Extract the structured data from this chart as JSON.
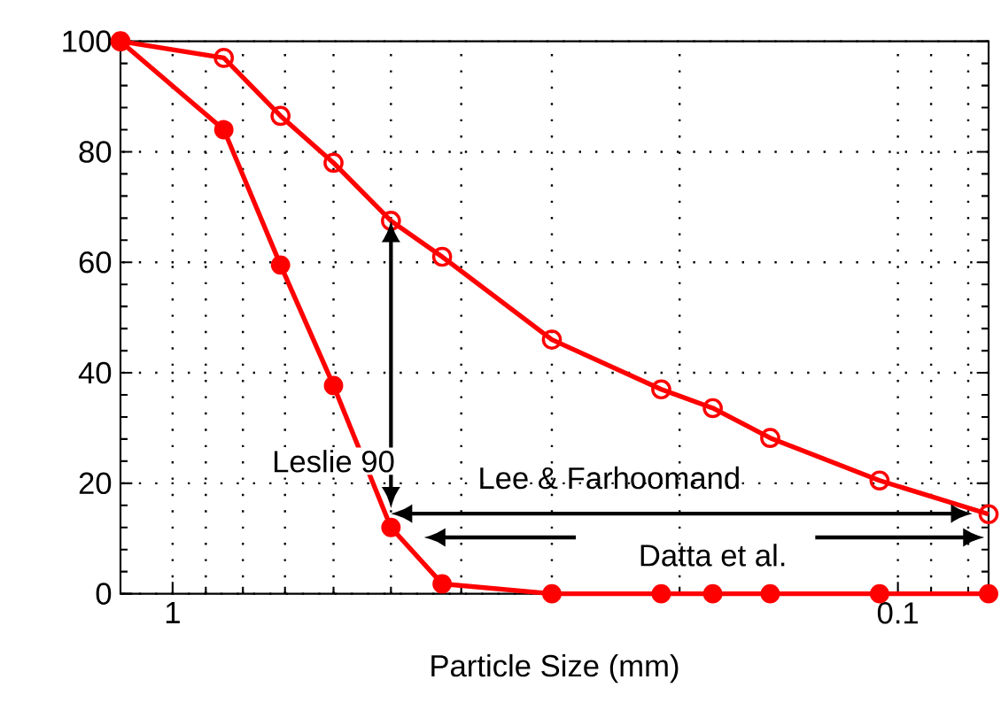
{
  "chart_data": {
    "type": "line",
    "xlabel": "Particle Size (mm)",
    "x": [
      1.18,
      0.85,
      0.71,
      0.6,
      0.5,
      0.425,
      0.3,
      0.212,
      0.18,
      0.15,
      0.106,
      0.075
    ],
    "series": [
      {
        "color": "#ff0000",
        "marker": "circle",
        "values": [
          100,
          84,
          59.5,
          37.7,
          12,
          1.8,
          0,
          0,
          0,
          0,
          0,
          0
        ]
      },
      {
        "color": "#ff0000",
        "marker": "open circle",
        "values": [
          100,
          97,
          86.5,
          78,
          67.5,
          61,
          46,
          37,
          33.6,
          28.2,
          20.5,
          14.4
        ]
      }
    ],
    "log": "x",
    "xlim": [
      1.18,
      0.075
    ],
    "xticks": [
      1,
      0.1
    ],
    "ylim": [
      0,
      100
    ],
    "yticks": [
      0,
      20,
      40,
      60,
      80,
      100
    ],
    "grid": true,
    "line_style": "solid",
    "annotations": [
      "Leslie 90",
      "Lee & Farhoomand",
      "Datta et al."
    ]
  }
}
